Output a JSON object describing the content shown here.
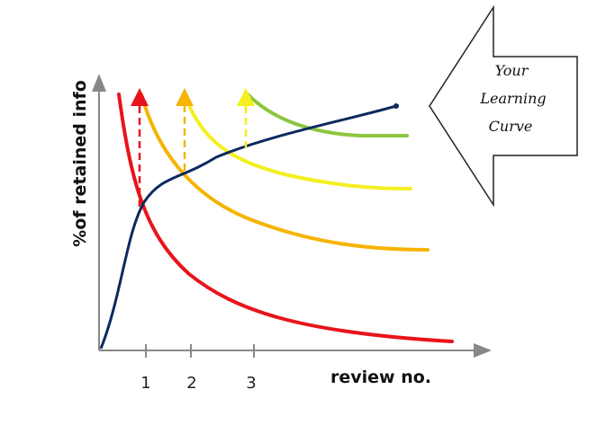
{
  "axes": {
    "y_label": "%of retained info",
    "x_label": "review no.",
    "x_ticks": [
      "1",
      "2",
      "3"
    ]
  },
  "callout": {
    "lines": [
      "Your",
      "Learning",
      "Curve"
    ]
  }
}
